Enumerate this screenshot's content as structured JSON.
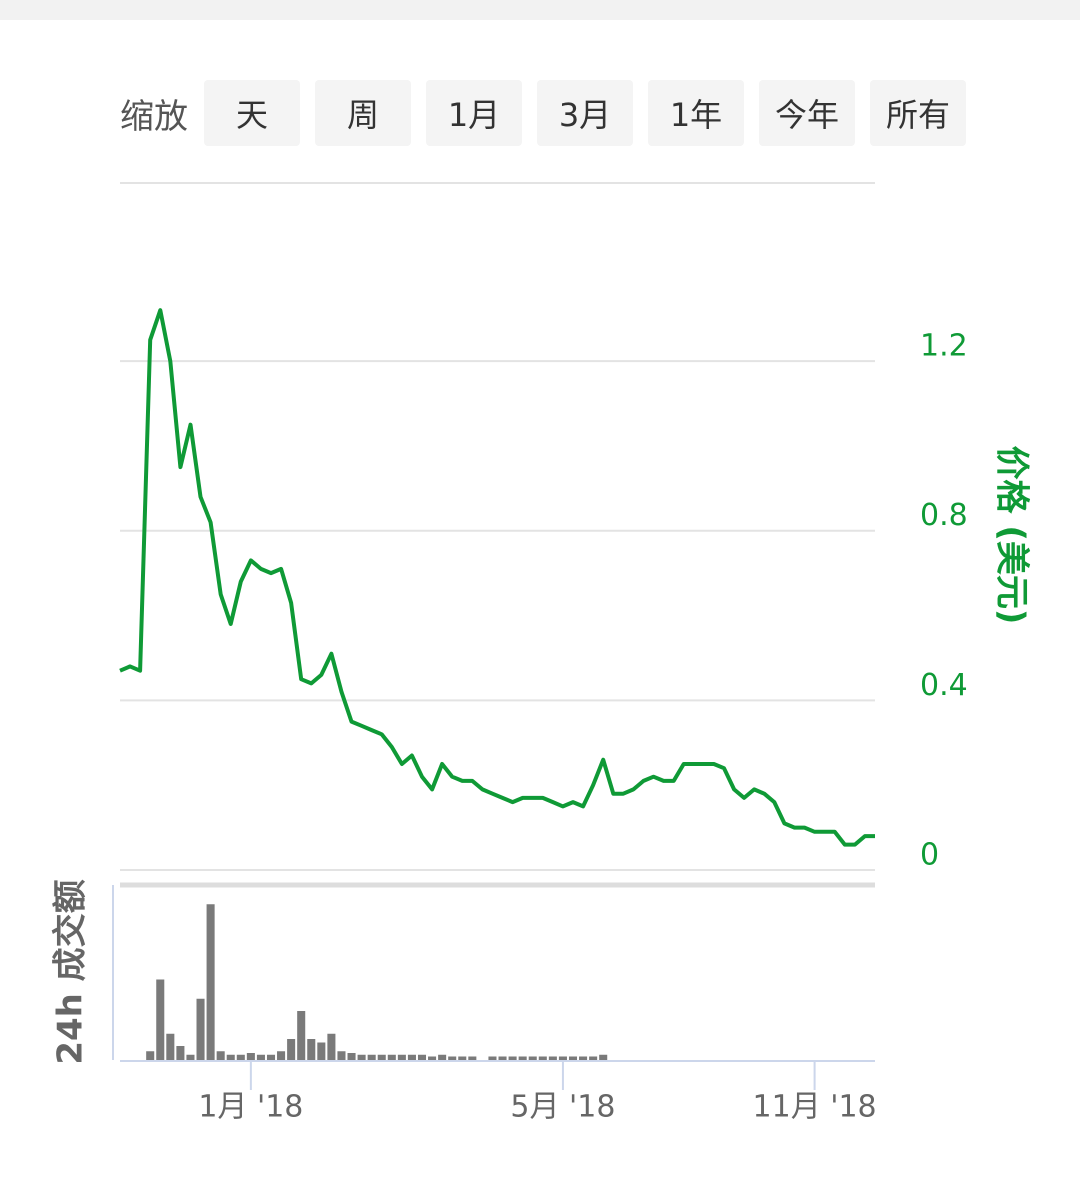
{
  "zoom": {
    "label": "缩放",
    "buttons": [
      "天",
      "周",
      "1月",
      "3月",
      "1年",
      "今年",
      "所有"
    ]
  },
  "chart_data": [
    {
      "type": "line",
      "y_axis_label": "价格 (美元)",
      "color": "#0f9a36",
      "categories": [
        null,
        null,
        null,
        null,
        null,
        null,
        null,
        null,
        null,
        null,
        null,
        null,
        null,
        "1月 '18",
        null,
        null,
        null,
        null,
        null,
        null,
        null,
        null,
        null,
        null,
        null,
        null,
        null,
        null,
        null,
        null,
        null,
        null,
        null,
        null,
        null,
        null,
        null,
        null,
        null,
        null,
        null,
        null,
        null,
        null,
        "5月 '18",
        null,
        null,
        null,
        null,
        null,
        null,
        null,
        null,
        null,
        null,
        null,
        null,
        null,
        null,
        null,
        null,
        null,
        null,
        null,
        null,
        null,
        null,
        null,
        null,
        "11月 '18",
        null,
        null,
        null,
        null,
        null,
        null
      ],
      "values": [
        0.47,
        0.48,
        0.47,
        1.25,
        1.32,
        1.2,
        0.95,
        1.05,
        0.88,
        0.82,
        0.65,
        0.58,
        0.68,
        0.73,
        0.71,
        0.7,
        0.71,
        0.63,
        0.45,
        0.44,
        0.46,
        0.51,
        0.42,
        0.35,
        0.34,
        0.33,
        0.32,
        0.29,
        0.25,
        0.27,
        0.22,
        0.19,
        0.25,
        0.22,
        0.21,
        0.21,
        0.19,
        0.18,
        0.17,
        0.16,
        0.17,
        0.17,
        0.17,
        0.16,
        0.15,
        0.16,
        0.15,
        0.2,
        0.26,
        0.18,
        0.18,
        0.19,
        0.21,
        0.22,
        0.21,
        0.21,
        0.25,
        0.25,
        0.25,
        0.25,
        0.24,
        0.19,
        0.17,
        0.19,
        0.18,
        0.16,
        0.11,
        0.1,
        0.1,
        0.09,
        0.09,
        0.09,
        0.06,
        0.06,
        0.08,
        0.08
      ],
      "ylim": [
        0,
        1.62
      ],
      "yticks": [
        0,
        0.4,
        0.8,
        1.2
      ],
      "grid": true
    },
    {
      "type": "bar",
      "y_axis_label": "24h 成交额",
      "color": "#7a7a7a",
      "values": [
        0,
        0,
        0,
        5,
        46,
        15,
        8,
        3,
        35,
        89,
        5,
        3,
        3,
        4,
        3,
        3,
        5,
        12,
        28,
        12,
        10,
        15,
        5,
        4,
        3,
        3,
        3,
        3,
        3,
        3,
        3,
        2,
        3,
        2,
        2,
        2,
        0,
        2,
        2,
        2,
        2,
        2,
        2,
        2,
        2,
        2,
        2,
        2,
        3,
        0,
        0,
        0,
        0,
        0,
        0,
        0,
        0,
        0,
        0,
        0,
        0,
        0,
        0,
        0,
        0,
        0,
        0,
        0,
        0,
        0,
        0,
        0,
        0,
        0,
        0,
        0
      ],
      "ylim": [
        0,
        100
      ]
    }
  ]
}
